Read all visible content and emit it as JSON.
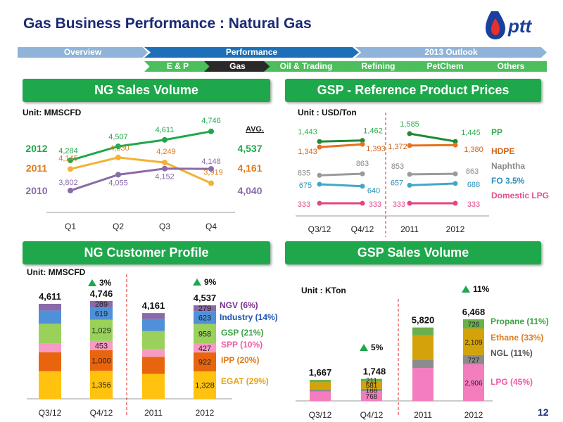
{
  "title": "Gas Business Performance : Natural Gas",
  "logo_text": "pttt",
  "page_number": "12",
  "nav": {
    "top": [
      {
        "label": "Overview",
        "color": "#8fb3d9"
      },
      {
        "label": "Performance",
        "color": "#1d70b8"
      },
      {
        "label": "2013 Outlook",
        "color": "#8fb3d9"
      }
    ],
    "sub": [
      {
        "label": "E & P",
        "color": "#4cbe5b"
      },
      {
        "label": "Gas",
        "color": "#2a2a2a"
      },
      {
        "label": "Oil & Trading",
        "color": "#4cbe5b"
      },
      {
        "label": "Refining",
        "color": "#4cbe5b"
      },
      {
        "label": "PetChem",
        "color": "#4cbe5b"
      },
      {
        "label": "Others",
        "color": "#4cbe5b"
      }
    ]
  },
  "sections": {
    "ng_sales": {
      "title": "NG Sales Volume",
      "unit": "Unit: MMSCFD"
    },
    "gsp_prices": {
      "title": "GSP - Reference Product Prices",
      "unit": "Unit : USD/Ton"
    },
    "ng_customer": {
      "title": "NG Customer Profile",
      "unit": "Unit: MMSCFD"
    },
    "gsp_sales": {
      "title": "GSP Sales Volume",
      "unit": "Unit : KTon"
    }
  },
  "chart_data": [
    {
      "id": "ng_sales",
      "type": "line",
      "categories": [
        "Q1",
        "Q2",
        "Q3",
        "Q4"
      ],
      "avg_label": "AVG.",
      "ylim": [
        3700,
        4800
      ],
      "series": [
        {
          "name": "2012",
          "values": [
            4284,
            4507,
            4611,
            4746
          ],
          "labels": [
            "4,284",
            "4,507",
            "4,611",
            "4,746"
          ],
          "avg": "4,537",
          "color": "#1fa84a"
        },
        {
          "name": "2011",
          "values": [
            4145,
            4330,
            4249,
            3919
          ],
          "labels": [
            "4,145",
            "4,330",
            "4,249",
            "3,919"
          ],
          "avg": "4,161",
          "color": "#f3b234",
          "text_color": "#e07b1b"
        },
        {
          "name": "2010",
          "values": [
            3802,
            4055,
            4152,
            4148
          ],
          "labels": [
            "3,802",
            "4,055",
            "4,152",
            "4,148"
          ],
          "avg": "4,040",
          "color": "#8a6aa8"
        }
      ]
    },
    {
      "id": "gsp_prices",
      "type": "line",
      "categories": [
        "Q3/12",
        "Q4/12",
        "2011",
        "2012"
      ],
      "ylim": [
        280,
        1640
      ],
      "divider_after": 1,
      "series": [
        {
          "name": "PP",
          "values": [
            1443,
            1462,
            1585,
            1445
          ],
          "labels": [
            "1,443",
            "1,462",
            "1,585",
            "1,445"
          ],
          "color": "#1f8a34",
          "text_color": "#2fae4e"
        },
        {
          "name": "HDPE",
          "values": [
            1343,
            1393,
            1372,
            1380
          ],
          "labels": [
            "1,343",
            "1,393",
            "1,372",
            "1,380"
          ],
          "color": "#e8711c",
          "text_color": "#d4661a"
        },
        {
          "name": "Naphtha",
          "values": [
            835,
            863,
            853,
            863
          ],
          "labels": [
            "835",
            "863",
            "853",
            "863"
          ],
          "color": "#9a9a9a",
          "text_color": "#8a8a8a"
        },
        {
          "name": "FO 3.5%",
          "values": [
            675,
            640,
            657,
            688
          ],
          "labels": [
            "675",
            "640",
            "657",
            "688"
          ],
          "color": "#3fa8c8",
          "text_color": "#2f8fb5"
        },
        {
          "name": "Domestic LPG",
          "values": [
            333,
            333,
            333,
            333
          ],
          "labels": [
            "333",
            "333",
            "333",
            "333"
          ],
          "color": "#e8457f",
          "text_color": "#e05090"
        }
      ]
    },
    {
      "id": "ng_customer",
      "type": "bar",
      "stacked": true,
      "categories": [
        "Q3/12",
        "Q4/12",
        "2011",
        "2012"
      ],
      "totals": [
        4611,
        4746,
        4161,
        4537
      ],
      "total_labels": [
        "4,611",
        "4,746",
        "4,161",
        "4,537"
      ],
      "divider_after": 1,
      "growth": [
        {
          "after_category": 1,
          "label": "3%"
        },
        {
          "after_category": 3,
          "label": "9%"
        }
      ],
      "series": [
        {
          "name": "EGAT (29%)",
          "values": [
            1337,
            1356,
            1207,
            1328
          ],
          "labels": [
            "",
            "1,356",
            "",
            "1,328"
          ],
          "color": "#ffc20e",
          "text_color": "#e8a317"
        },
        {
          "name": "IPP (20%)",
          "values": [
            922,
            1000,
            832,
            922
          ],
          "labels": [
            "",
            "1,000",
            "",
            "922"
          ],
          "color": "#e8650e",
          "text_color": "#e07b1b"
        },
        {
          "name": "SPP (10%)",
          "values": [
            415,
            453,
            375,
            427
          ],
          "labels": [
            "",
            "453",
            "",
            "427"
          ],
          "color": "#f79ac4",
          "text_color": "#ee5aa4"
        },
        {
          "name": "GSP (21%)",
          "values": [
            968,
            1029,
            873,
            958
          ],
          "labels": [
            "",
            "1,029",
            "",
            "958"
          ],
          "color": "#99d15a",
          "text_color": "#3aa245"
        },
        {
          "name": "Industry (14%)",
          "values": [
            646,
            619,
            583,
            623
          ],
          "labels": [
            "",
            "619",
            "",
            "623"
          ],
          "color": "#4f90d9",
          "text_color": "#1f55b0"
        },
        {
          "name": "NGV (6%)",
          "values": [
            323,
            289,
            291,
            279
          ],
          "labels": [
            "",
            "289",
            "",
            "279"
          ],
          "color": "#8a6aa8",
          "text_color": "#7a2e8e"
        }
      ]
    },
    {
      "id": "gsp_sales",
      "type": "bar",
      "stacked": true,
      "categories": [
        "Q3/12",
        "Q4/12",
        "2011",
        "2012"
      ],
      "totals": [
        1667,
        1748,
        5820,
        6468
      ],
      "total_labels": [
        "1,667",
        "1,748",
        "5,820",
        "6,468"
      ],
      "divider_after": 1,
      "growth": [
        {
          "after_category": 1,
          "label": "5%"
        },
        {
          "after_category": 3,
          "label": "11%"
        }
      ],
      "series": [
        {
          "name": "LPG (45%)",
          "values": [
            750,
            768,
            2619,
            2906
          ],
          "labels": [
            "",
            "768",
            "",
            "2,906"
          ],
          "color": "#f47dbf",
          "text_color": "#ee5aa4"
        },
        {
          "name": "NGL (11%)",
          "values": [
            183,
            188,
            640,
            727
          ],
          "labels": [
            "",
            "188",
            "",
            "727"
          ],
          "color": "#8c8c8c",
          "text_color": "#555555"
        },
        {
          "name": "Ethane (33%)",
          "values": [
            550,
            581,
            1920,
            2109
          ],
          "labels": [
            "",
            "581",
            "",
            "2,109"
          ],
          "color": "#d4a20a",
          "text_color": "#e07b1b"
        },
        {
          "name": "Propane (11%)",
          "values": [
            184,
            211,
            641,
            726
          ],
          "labels": [
            "",
            "211",
            "",
            "726"
          ],
          "color": "#6ab04c",
          "text_color": "#3aa245"
        }
      ]
    }
  ]
}
